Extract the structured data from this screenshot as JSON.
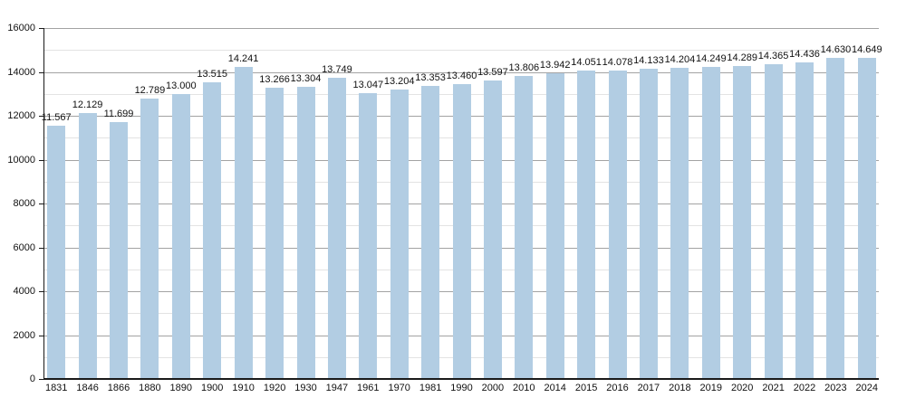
{
  "chart_data": {
    "type": "bar",
    "title": "",
    "xlabel": "",
    "ylabel": "",
    "ylim": [
      0,
      16000
    ],
    "grid": true,
    "legend_position": "none",
    "y_major_tick_values": [
      0,
      2000,
      4000,
      6000,
      8000,
      10000,
      12000,
      14000,
      16000
    ],
    "y_tick_labels": [
      "0",
      "2000",
      "4000",
      "6000",
      "8000",
      "10000",
      "12000",
      "14000",
      "16000"
    ],
    "y_minor_step": 1000,
    "categories": [
      "1831",
      "1846",
      "1866",
      "1880",
      "1890",
      "1900",
      "1910",
      "1920",
      "1930",
      "1947",
      "1961",
      "1970",
      "1981",
      "1990",
      "2000",
      "2010",
      "2014",
      "2015",
      "2016",
      "2017",
      "2018",
      "2019",
      "2020",
      "2021",
      "2022",
      "2023",
      "2024"
    ],
    "values": [
      11567,
      12129,
      11699,
      12789,
      13000,
      13515,
      14241,
      13266,
      13304,
      13749,
      13047,
      13204,
      13353,
      13460,
      13597,
      13806,
      13942,
      14051,
      14078,
      14133,
      14204,
      14249,
      14289,
      14365,
      14436,
      14630,
      14649
    ],
    "value_labels": [
      "11.567",
      "12.129",
      "11.699",
      "12.789",
      "13.000",
      "13.515",
      "14.241",
      "13.266",
      "13.304",
      "13.749",
      "13.047",
      "13.204",
      "13.353",
      "13.460",
      "13.597",
      "13.806",
      "13.942",
      "14.051",
      "14.078",
      "14.133",
      "14.204",
      "14.249",
      "14.289",
      "14.365",
      "14.436",
      "14.630",
      "14.649"
    ],
    "colors": {
      "bar_fill": "#b2cde3",
      "major_gridline": "#a3a3a3",
      "minor_gridline": "#e3e3e3",
      "axis": "#1a1a1a",
      "text": "#111111",
      "background": "#ffffff"
    }
  }
}
